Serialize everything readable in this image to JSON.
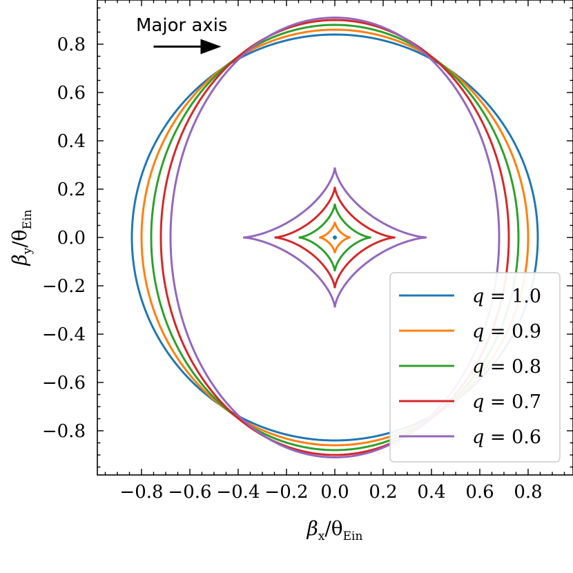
{
  "chart_data": {
    "type": "line",
    "xlabel_symbol": "β",
    "xlabel_sub": "x",
    "ylabel_symbol": "β",
    "ylabel_sub": "y",
    "label_divisor": "/θ",
    "label_divisor_sub": "Ein",
    "xlim": [
      -0.95,
      0.95
    ],
    "ylim": [
      -0.95,
      0.95
    ],
    "xticks": [
      "−0.8",
      "−0.6",
      "−0.4",
      "−0.2",
      "0.0",
      "0.2",
      "0.4",
      "0.6",
      "0.8"
    ],
    "xtick_values": [
      -0.8,
      -0.6,
      -0.4,
      -0.2,
      0.0,
      0.2,
      0.4,
      0.6,
      0.8
    ],
    "yticks": [
      "0.8",
      "0.6",
      "0.4",
      "0.2",
      "0.0",
      "−0.2",
      "−0.4",
      "−0.6",
      "−0.8"
    ],
    "ytick_values": [
      0.8,
      0.6,
      0.4,
      0.2,
      0.0,
      -0.2,
      -0.4,
      -0.6,
      -0.8
    ],
    "annotation": {
      "text": "Major axis",
      "arrow_from": [
        -0.75,
        0.79
      ],
      "arrow_to": [
        -0.47,
        0.79
      ]
    },
    "legend_placement": "lower-right",
    "series": [
      {
        "name": "q = 1.0",
        "q": 1.0,
        "color": "#1f77b4",
        "outer_half_width_x": 0.84,
        "outer_half_height_y": 0.84,
        "cusp_x": 0.0,
        "cusp_y": 0.0
      },
      {
        "name": "q = 0.9",
        "q": 0.9,
        "color": "#ff7f0e",
        "outer_half_width_x": 0.8,
        "outer_half_height_y": 0.86,
        "cusp_x": 0.065,
        "cusp_y": 0.065
      },
      {
        "name": "q = 0.8",
        "q": 0.8,
        "color": "#2ca02c",
        "outer_half_width_x": 0.76,
        "outer_half_height_y": 0.88,
        "cusp_x": 0.15,
        "cusp_y": 0.14
      },
      {
        "name": "q = 0.7",
        "q": 0.7,
        "color": "#d62728",
        "outer_half_width_x": 0.72,
        "outer_half_height_y": 0.9,
        "cusp_x": 0.25,
        "cusp_y": 0.21
      },
      {
        "name": "q = 0.6",
        "q": 0.6,
        "color": "#9467bd",
        "outer_half_width_x": 0.68,
        "outer_half_height_y": 0.91,
        "cusp_x": 0.38,
        "cusp_y": 0.29
      }
    ],
    "legend_entries": [
      {
        "symbol": "q",
        "rest": " = 1.0"
      },
      {
        "symbol": "q",
        "rest": " = 0.9"
      },
      {
        "symbol": "q",
        "rest": " = 0.8"
      },
      {
        "symbol": "q",
        "rest": " = 0.7"
      },
      {
        "symbol": "q",
        "rest": " = 0.6"
      }
    ]
  }
}
